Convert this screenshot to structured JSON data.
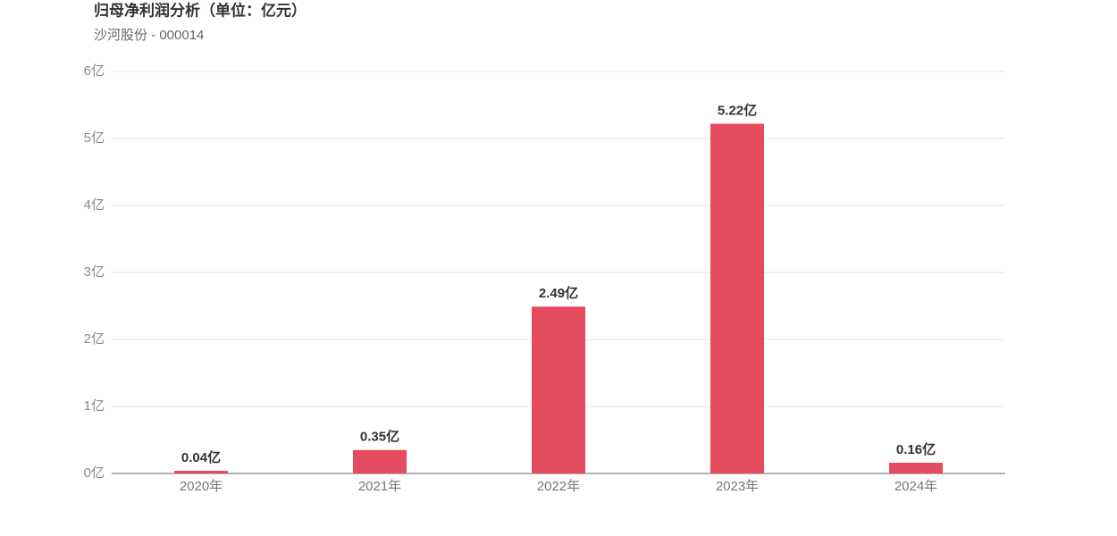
{
  "chart_data": {
    "type": "bar",
    "title": "归母净利润分析（单位：亿元）",
    "subtitle": "沙河股份 - 000014",
    "categories": [
      "2020年",
      "2021年",
      "2022年",
      "2023年",
      "2024年"
    ],
    "values": [
      0.04,
      0.35,
      2.49,
      5.22,
      0.16
    ],
    "value_labels": [
      "0.04亿",
      "0.35亿",
      "2.49亿",
      "5.22亿",
      "0.16亿"
    ],
    "color": "#e54b5e",
    "ylim": [
      0,
      6
    ],
    "yticks": [
      {
        "value": 0,
        "label": "0亿"
      },
      {
        "value": 1,
        "label": "1亿"
      },
      {
        "value": 2,
        "label": "2亿"
      },
      {
        "value": 3,
        "label": "3亿"
      },
      {
        "value": 4,
        "label": "4亿"
      },
      {
        "value": 5,
        "label": "5亿"
      },
      {
        "value": 6,
        "label": "6亿"
      }
    ],
    "grid": true
  }
}
